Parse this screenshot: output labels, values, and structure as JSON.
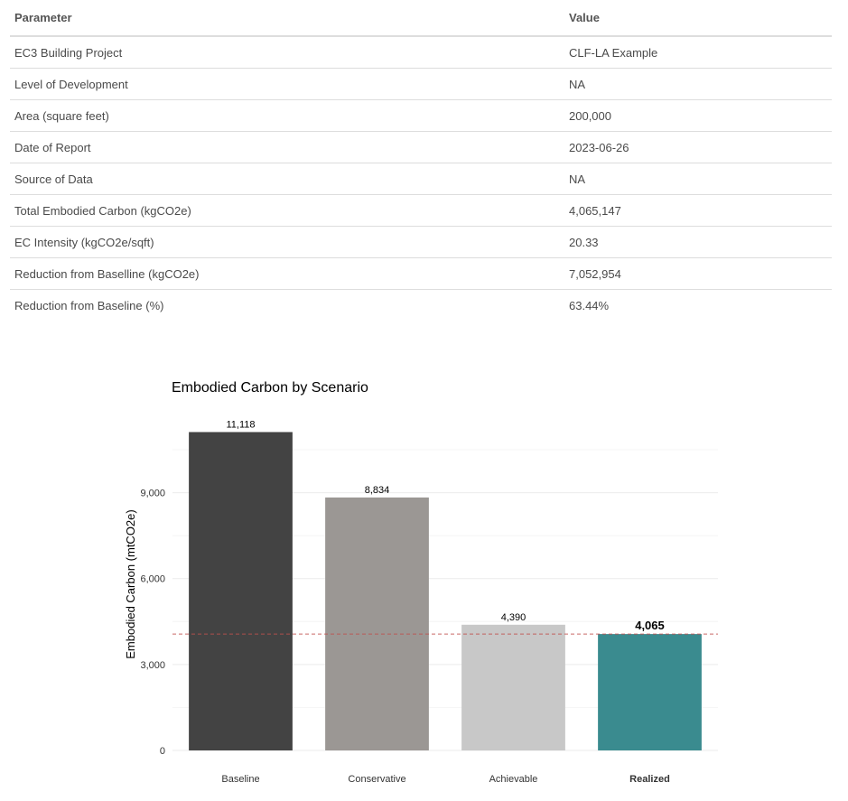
{
  "table": {
    "headers": [
      "Parameter",
      "Value"
    ],
    "rows": [
      [
        "EC3 Building Project",
        "CLF-LA Example"
      ],
      [
        "Level of Development",
        "NA"
      ],
      [
        "Area (square feet)",
        "200,000"
      ],
      [
        "Date of Report",
        "2023-06-26"
      ],
      [
        "Source of Data",
        "NA"
      ],
      [
        "Total Embodied Carbon (kgCO2e)",
        "4,065,147"
      ],
      [
        "EC Intensity (kgCO2e/sqft)",
        "20.33"
      ],
      [
        "Reduction from Baselline (kgCO2e)",
        "7,052,954"
      ],
      [
        "Reduction from Baseline (%)",
        "63.44%"
      ]
    ]
  },
  "chart_data": {
    "type": "bar",
    "title": "Embodied Carbon by Scenario",
    "xlabel": "",
    "ylabel": "Embodied Carbon (mtCO2e)",
    "categories": [
      "Baseline",
      "Conservative",
      "Achievable",
      "Realized"
    ],
    "values": [
      11118,
      8834,
      4390,
      4065
    ],
    "value_labels": [
      "11,118",
      "8,834",
      "4,390",
      "4,065"
    ],
    "highlight_category": "Realized",
    "bar_colors": [
      "#434343",
      "#9b9794",
      "#c8c8c8",
      "#3a8b8f"
    ],
    "ylim": [
      0,
      11700
    ],
    "yticks": [
      0,
      3000,
      6000,
      9000
    ],
    "ytick_labels": [
      "0",
      "3,000",
      "6,000",
      "9,000"
    ],
    "reference_line": {
      "value": 4065,
      "color": "#c0504d",
      "style": "dashed"
    },
    "grid": true
  }
}
